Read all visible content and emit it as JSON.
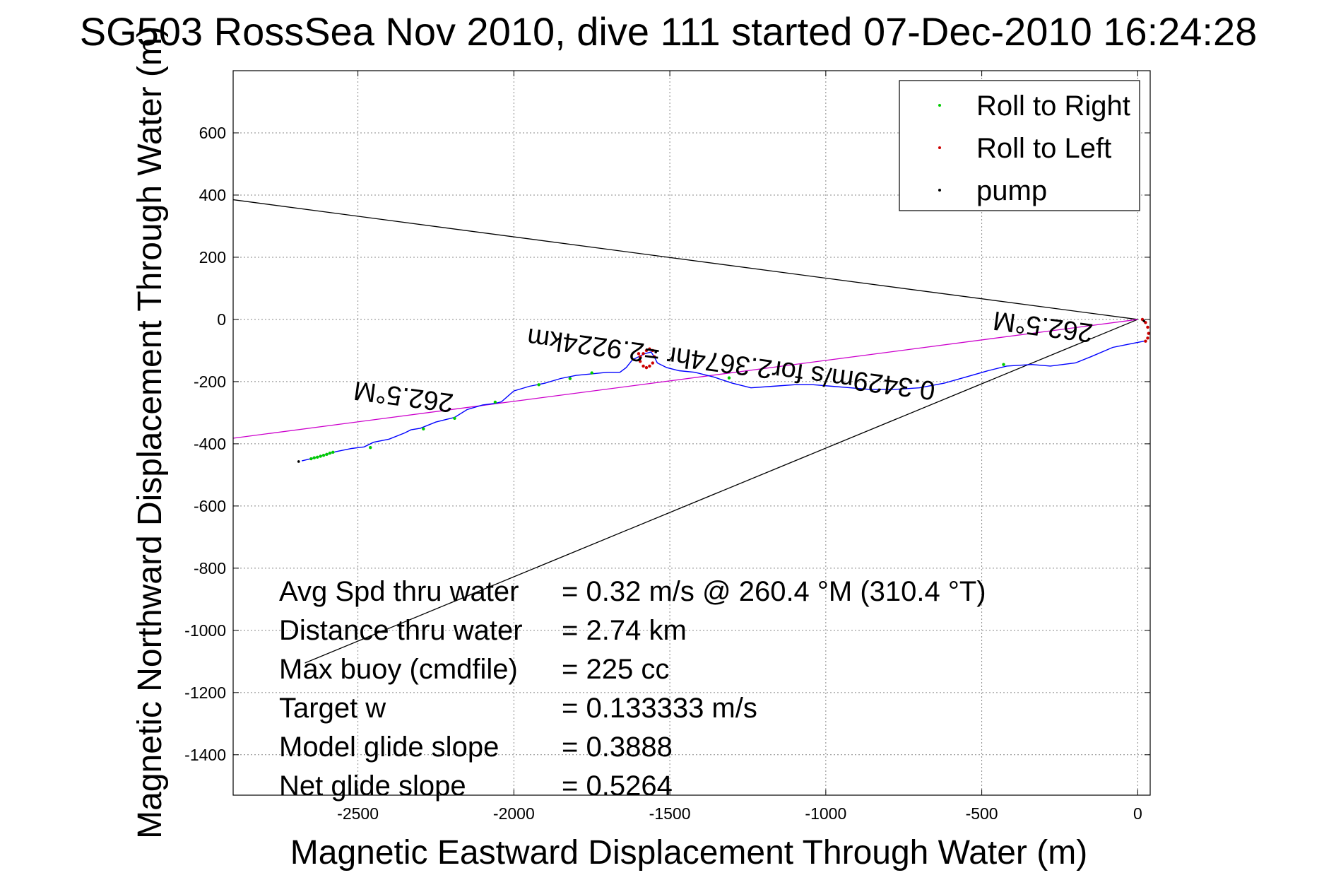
{
  "chart_data": {
    "type": "line",
    "title": "SG503 RossSea Nov 2010, dive 111 started 07-Dec-2010 16:24:28",
    "xlabel": "Magnetic Eastward Displacement Through Water (m)",
    "ylabel": "Magnetic Northward Displacement Through Water (m)",
    "xlim": [
      -2900,
      40
    ],
    "ylim": [
      -1530,
      800
    ],
    "xticks": [
      -2500,
      -2000,
      -1500,
      -1000,
      -500,
      0
    ],
    "yticks": [
      600,
      400,
      200,
      0,
      -200,
      -400,
      -600,
      -800,
      -1000,
      -1200,
      -1400
    ],
    "grid": true,
    "legend_placement": "top-right",
    "legend": [
      {
        "label": "Roll to Right",
        "color": "#00cc00"
      },
      {
        "label": "Roll to Left",
        "color": "#cc0000"
      },
      {
        "label": "pump",
        "color": "#000000"
      }
    ],
    "track": {
      "color": "#0000ff",
      "x": [
        20,
        -30,
        -80,
        -150,
        -200,
        -280,
        -340,
        -420,
        -480,
        -550,
        -620,
        -700,
        -780,
        -860,
        -920,
        -980,
        -1040,
        -1100,
        -1170,
        -1240,
        -1300,
        -1360,
        -1420,
        -1470,
        -1510,
        -1540,
        -1550,
        -1560,
        -1580,
        -1600,
        -1620,
        -1640,
        -1660,
        -1700,
        -1750,
        -1800,
        -1850,
        -1900,
        -1950,
        -2000,
        -2040,
        -2060,
        -2100,
        -2150,
        -2190,
        -2210,
        -2250,
        -2300,
        -2330,
        -2350,
        -2400,
        -2450,
        -2480,
        -2520,
        -2570,
        -2620,
        -2660,
        -2680
      ],
      "y": [
        -70,
        -80,
        -90,
        -120,
        -140,
        -150,
        -145,
        -150,
        -165,
        -185,
        -205,
        -220,
        -225,
        -225,
        -220,
        -215,
        -210,
        -210,
        -215,
        -220,
        -205,
        -185,
        -170,
        -165,
        -155,
        -140,
        -120,
        -105,
        -110,
        -120,
        -130,
        -155,
        -170,
        -170,
        -175,
        -180,
        -190,
        -205,
        -215,
        -230,
        -265,
        -270,
        -275,
        -290,
        -315,
        -320,
        -330,
        -350,
        -355,
        -365,
        -385,
        -395,
        -410,
        -415,
        -425,
        -440,
        -450,
        -455
      ]
    },
    "lines": [
      {
        "name": "",
        "color": "#000000",
        "x": [
          0,
          -2900
        ],
        "y": [
          0,
          385
        ]
      },
      {
        "name": "",
        "color": "#000000",
        "x": [
          0,
          -2670
        ],
        "y": [
          0,
          -1105
        ]
      },
      {
        "name": "",
        "color": "#cc00cc",
        "x": [
          0,
          -2900
        ],
        "y": [
          0,
          -382
        ]
      }
    ],
    "roll_right_points": {
      "x": [
        -2650,
        -2640,
        -2630,
        -2620,
        -2610,
        -2600,
        -2590,
        -2580,
        -2460,
        -2290,
        -2190,
        -2060,
        -1920,
        -1820,
        -1750,
        -1310,
        -430
      ],
      "y": [
        -448,
        -445,
        -443,
        -440,
        -437,
        -434,
        -430,
        -427,
        -412,
        -352,
        -318,
        -266,
        -210,
        -190,
        -172,
        -188,
        -145
      ]
    },
    "roll_left_points": {
      "x": [
        -1600,
        -1595,
        -1585,
        -1575,
        -1565,
        -1555,
        -1550,
        -1555,
        -1565,
        -1575,
        -1585,
        -1595,
        15,
        25,
        32,
        35,
        32,
        25
      ],
      "y": [
        -110,
        -135,
        -150,
        -155,
        -150,
        -140,
        -120,
        -100,
        -95,
        -100,
        -110,
        -120,
        0,
        -10,
        -25,
        -45,
        -60,
        -70
      ]
    },
    "pump_points": {
      "x": [
        -2690,
        -1545,
        20
      ],
      "y": [
        -457,
        -105,
        -5
      ]
    },
    "annotations": [
      {
        "text": "262.5°M",
        "x": -2350,
        "y": -220,
        "rotate": 187.5
      },
      {
        "text": "262.5°M",
        "x": -300,
        "y": 5,
        "rotate": 187.5
      },
      {
        "text": "0.3429m/s for2.3674hr =2.9224km",
        "x": -1300,
        "y": -115,
        "rotate": 187.5
      }
    ],
    "stats": [
      {
        "label": "Avg Spd thru water",
        "value": "=  0.32 m/s @ 260.4 °M (310.4 °T)"
      },
      {
        "label": "Distance thru water",
        "value": "=  2.74 km"
      },
      {
        "label": "Max buoy (cmdfile)",
        "value": "= 225 cc"
      },
      {
        "label": "Target w",
        "value": "= 0.133333 m/s"
      },
      {
        "label": "Model glide slope",
        "value": "= 0.3888"
      },
      {
        "label": "Net glide slope",
        "value": "= 0.5264"
      }
    ]
  }
}
